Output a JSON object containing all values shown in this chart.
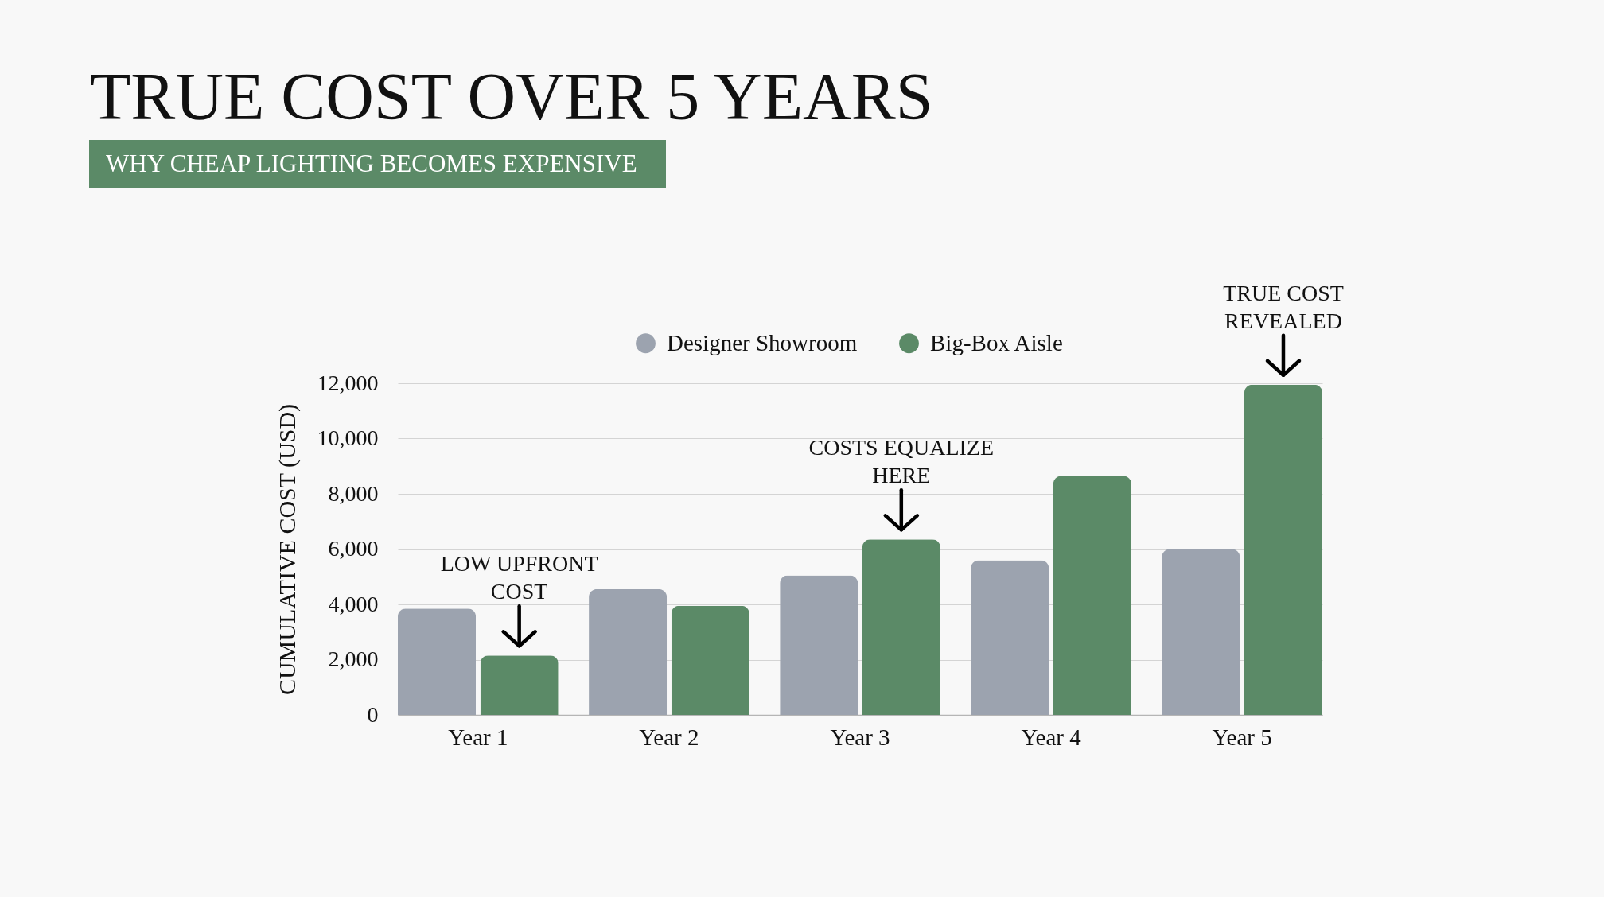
{
  "chart_data": {
    "type": "bar",
    "title": "TRUE COST OVER 5 YEARS",
    "subtitle": "WHY CHEAP LIGHTING BECOMES EXPENSIVE",
    "ylabel": "CUMULATIVE COST (USD)",
    "categories": [
      "Year 1",
      "Year 2",
      "Year 3",
      "Year 4",
      "Year 5"
    ],
    "series": [
      {
        "name": "Designer Showroom",
        "color": "#9ca3af",
        "values": [
          3850,
          4550,
          5050,
          5600,
          6000
        ]
      },
      {
        "name": "Big-Box Aisle",
        "color": "#5b8a67",
        "values": [
          2150,
          3950,
          6350,
          8650,
          11950
        ]
      }
    ],
    "ylim": [
      0,
      12000
    ],
    "yticks": [
      0,
      {
        "value": 2000,
        "label": "2,000"
      },
      {
        "value": 4000,
        "label": "4,000"
      },
      {
        "value": 6000,
        "label": "6,000"
      },
      {
        "value": 8000,
        "label": "8,000"
      },
      {
        "value": 10000,
        "label": "10,000"
      },
      {
        "value": 12000,
        "label": "12,000"
      }
    ],
    "grid": "y",
    "legend": "top",
    "annotations": [
      {
        "text": "LOW UPFRONT\nCOST",
        "x": "Year 1",
        "y": 2150
      },
      {
        "text": "COSTS EQUALIZE\nHERE",
        "x": "Year 3",
        "y": 6350
      },
      {
        "text": "TRUE COST\nREVEALED",
        "x": "Year 5",
        "y": 11950
      }
    ]
  }
}
